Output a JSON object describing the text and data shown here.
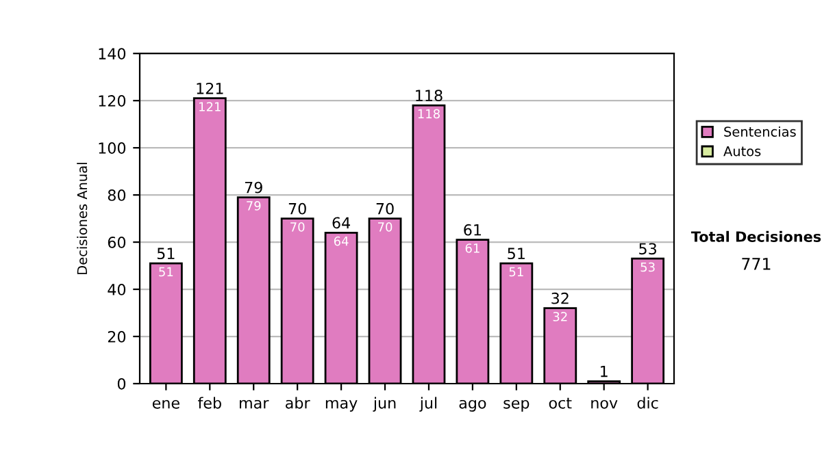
{
  "chart_data": {
    "type": "bar",
    "ylabel": "Decisiones Anual",
    "categories": [
      "ene",
      "feb",
      "mar",
      "abr",
      "may",
      "jun",
      "jul",
      "ago",
      "sep",
      "oct",
      "nov",
      "dic"
    ],
    "series": [
      {
        "name": "Sentencias",
        "color": "#e07cc0",
        "values": [
          51,
          121,
          79,
          70,
          64,
          70,
          118,
          61,
          51,
          32,
          1,
          53
        ],
        "value_labels": [
          "51",
          "121",
          "79",
          "70",
          "64",
          "70",
          "118",
          "61",
          "51",
          "32",
          null,
          "53"
        ]
      },
      {
        "name": "Autos",
        "color": "#d8eca0",
        "values": [
          null,
          null,
          null,
          null,
          null,
          null,
          null,
          null,
          null,
          null,
          null,
          null
        ]
      }
    ],
    "totals": [
      "51",
      "121",
      "79",
      "70",
      "64",
      "70",
      "118",
      "61",
      "51",
      "32",
      "1",
      "53"
    ],
    "ylim": [
      0,
      140
    ],
    "yticks": [
      0,
      20,
      40,
      60,
      80,
      100,
      120,
      140
    ],
    "grid": "y",
    "legend": "right",
    "annotations": [
      "Total Decisiones",
      "771"
    ]
  }
}
